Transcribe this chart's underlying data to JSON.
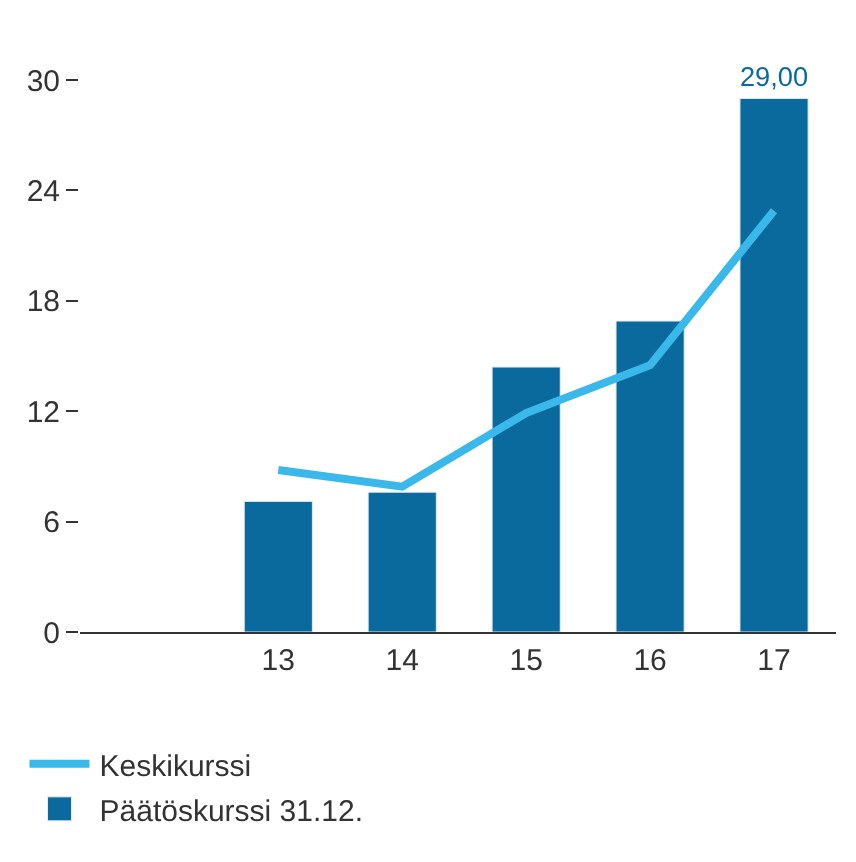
{
  "chart_data": {
    "type": "bar",
    "categories": [
      "13",
      "14",
      "15",
      "16",
      "17"
    ],
    "series": [
      {
        "name": "Keskikurssi",
        "type": "line",
        "color": "#3bb8ea",
        "values": [
          8.8,
          7.9,
          11.9,
          14.5,
          22.9
        ]
      },
      {
        "name": "Päätöskurssi 31.12.",
        "color": "#0a6a9e",
        "values": [
          7.1,
          7.6,
          14.4,
          16.9,
          29.0
        ],
        "value_labels": [
          null,
          null,
          null,
          null,
          "29,00"
        ]
      }
    ],
    "ylim": [
      0,
      30
    ],
    "yticks": [
      0,
      6,
      12,
      18,
      24,
      30
    ],
    "legend": "bottom",
    "marker": "none"
  }
}
